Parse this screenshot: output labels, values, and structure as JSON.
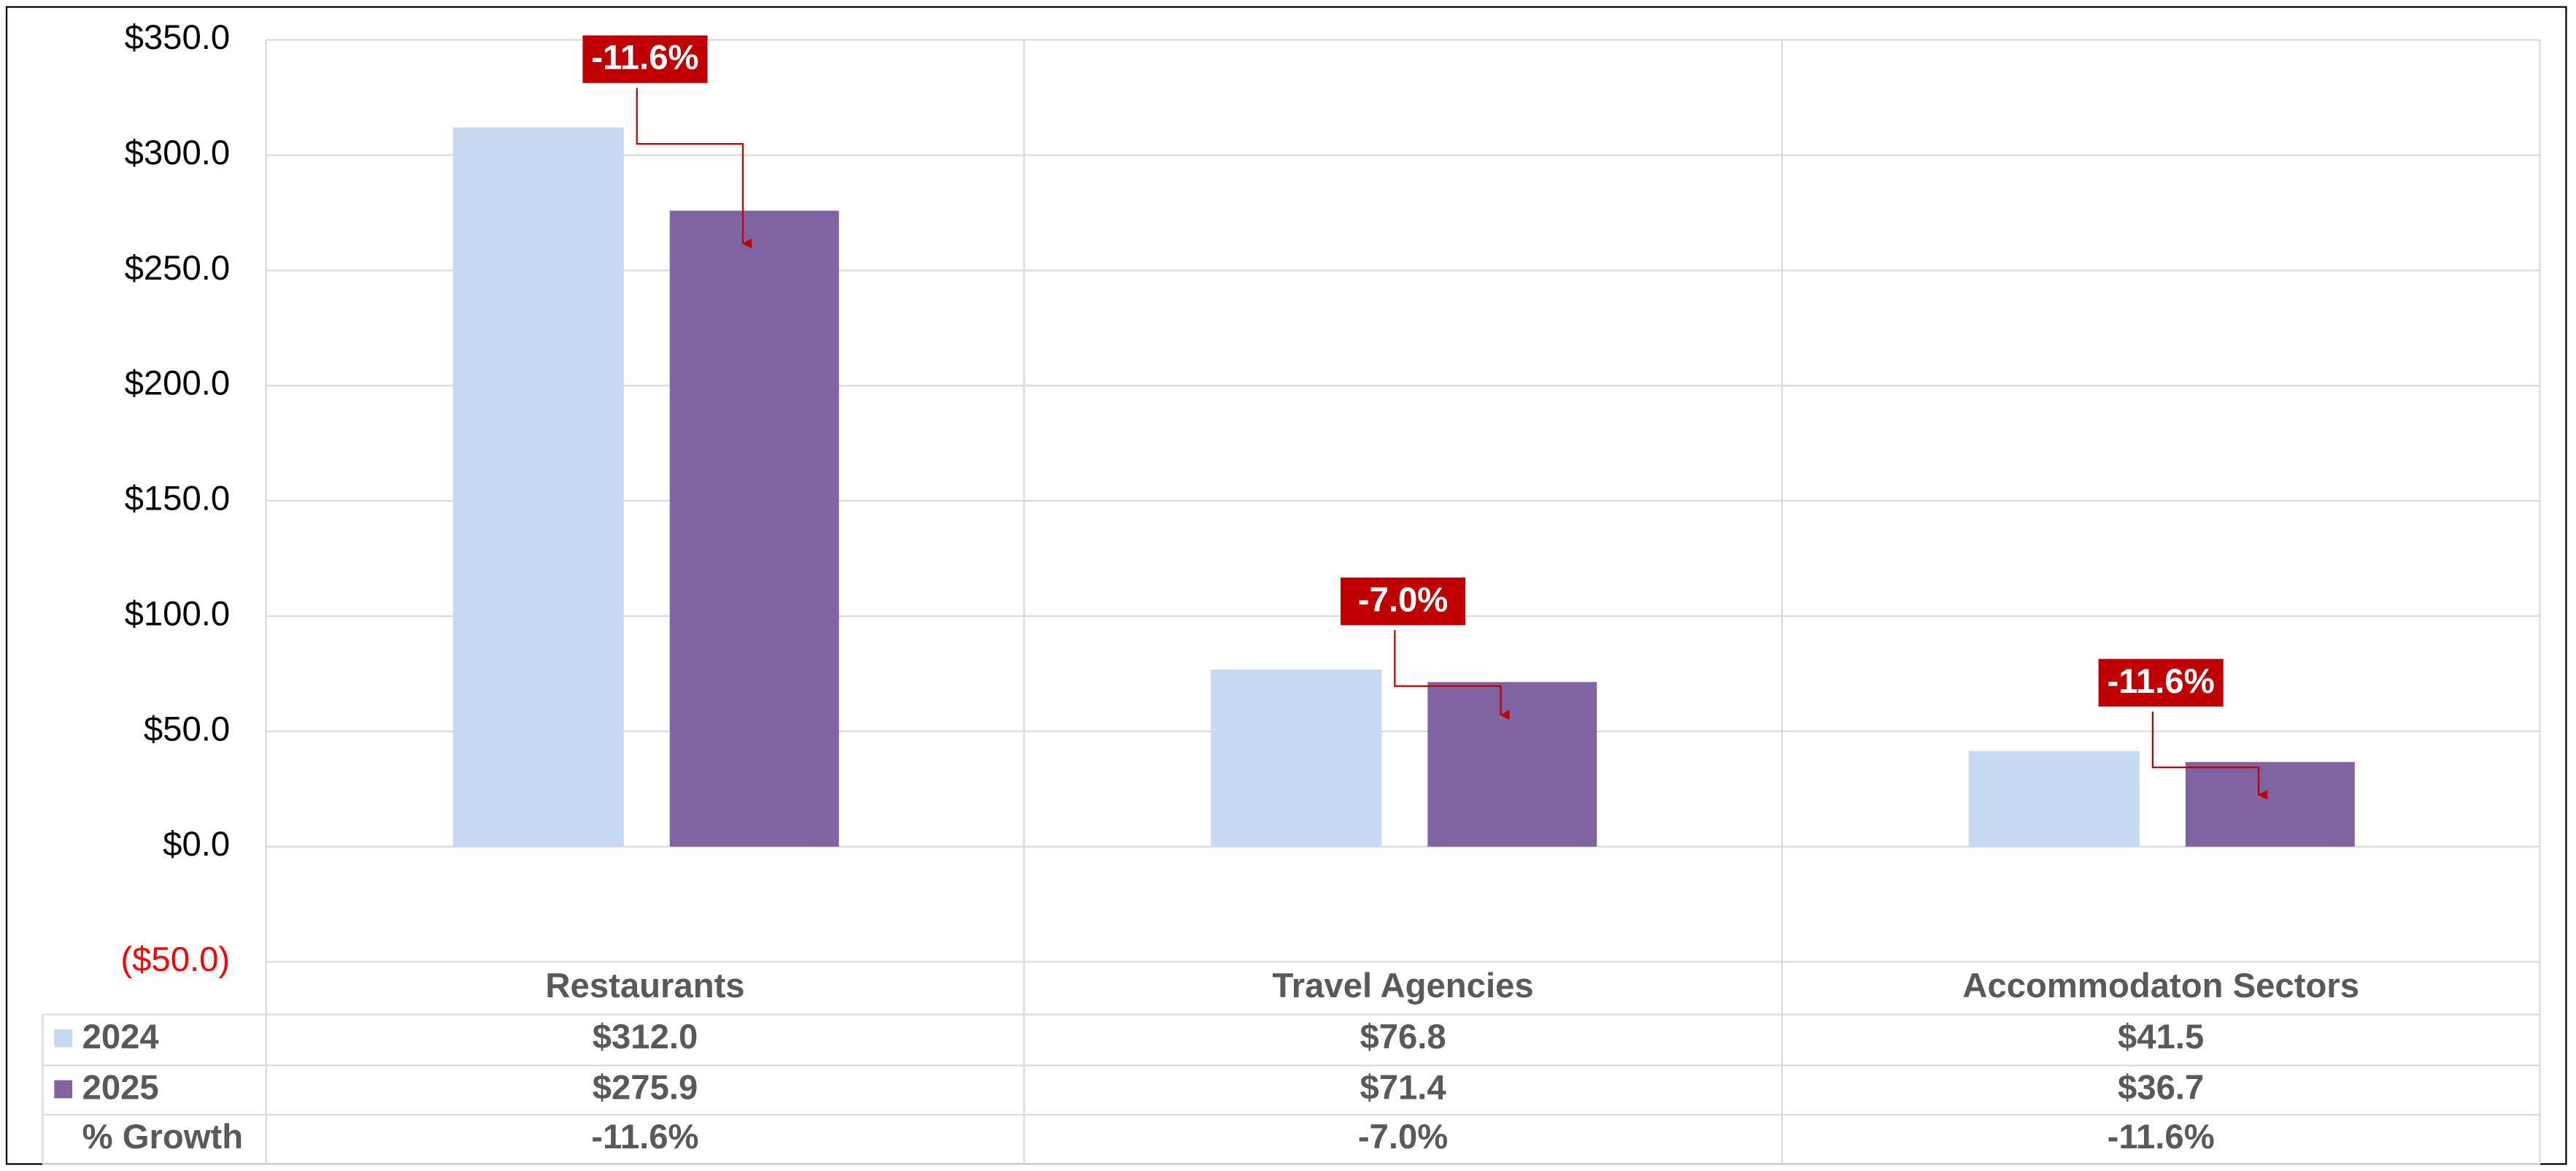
{
  "chart_data": {
    "type": "bar",
    "categories": [
      "Restaurants",
      "Travel Agencies",
      "Accommodaton Sectors"
    ],
    "series": [
      {
        "name": "2024",
        "color": "#c5d9f1",
        "values": [
          312.0,
          76.8,
          41.5
        ],
        "value_labels": [
          "$312.0",
          "$76.8",
          "$41.5"
        ]
      },
      {
        "name": "2025",
        "color": "#8064a2",
        "values": [
          275.9,
          71.4,
          36.7
        ],
        "value_labels": [
          "$275.9",
          "$71.4",
          "$36.7"
        ]
      }
    ],
    "growth": {
      "name": "% Growth",
      "values": [
        -11.6,
        -7.0,
        -11.6
      ],
      "value_labels": [
        "-11.6%",
        "-7.0%",
        "-11.6%"
      ],
      "color": "#c00000"
    },
    "ylim": [
      -50,
      350
    ],
    "yticks": [
      {
        "value": -50,
        "label": "($50.0)"
      },
      {
        "value": 0,
        "label": "$0.0"
      },
      {
        "value": 50,
        "label": "$50.0"
      },
      {
        "value": 100,
        "label": "$100.0"
      },
      {
        "value": 150,
        "label": "$150.0"
      },
      {
        "value": 200,
        "label": "$200.0"
      },
      {
        "value": 250,
        "label": "$250.0"
      },
      {
        "value": 300,
        "label": "$300.0"
      },
      {
        "value": 350,
        "label": "$350.0"
      }
    ],
    "grid": true,
    "data_table": true
  }
}
